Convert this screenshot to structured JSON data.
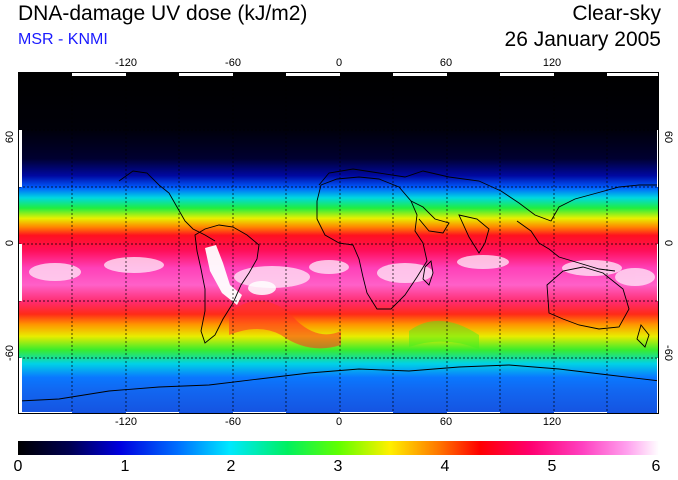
{
  "header": {
    "title": "DNA-damage UV dose (kJ/m2)",
    "subtitle": "MSR - KNMI",
    "condition": "Clear-sky",
    "date": "26 January 2005"
  },
  "colors": {
    "subtitle": "#1a1aff",
    "coastline": "#000000",
    "grid": "#000000"
  },
  "axes": {
    "lon_ticks": [
      "-120",
      "-60",
      "0",
      "60",
      "120"
    ],
    "lat_ticks": [
      "60",
      "0",
      "-60"
    ]
  },
  "colorbar": {
    "labels": [
      "0",
      "1",
      "2",
      "3",
      "4",
      "5",
      "6"
    ],
    "min": 0,
    "max": 6
  }
}
